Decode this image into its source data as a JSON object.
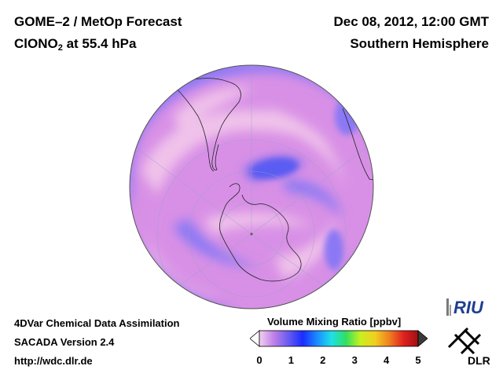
{
  "header": {
    "title": "GOME–2 / MetOp Forecast",
    "species_main": "ClONO",
    "species_sub": "2",
    "species_level": " at 55.4 hPa",
    "date": "Dec 08, 2012, 12:00 GMT",
    "region": "Southern Hemisphere"
  },
  "footer": {
    "line1": "4DVar Chemical Data Assimilation",
    "line2": "SACADA Version 2.4",
    "line3": "http://wdc.dlr.de"
  },
  "colorbar": {
    "title": "Volume Mixing Ratio [ppbv]",
    "min": 0,
    "max": 5,
    "ticks": [
      "0",
      "1",
      "2",
      "3",
      "4",
      "5"
    ],
    "under_color": "#ffffff",
    "over_color": "#3a3a3a",
    "colors": [
      "#f2d0f0",
      "#c080e8",
      "#6a5cf0",
      "#1a2cff",
      "#1a8cff",
      "#20e0e8",
      "#30e060",
      "#c8f020",
      "#f0d020",
      "#f08020",
      "#e02020",
      "#a01010"
    ]
  },
  "map": {
    "projection": "orthographic, south polar",
    "field_colors": {
      "low": "#f0c2ea",
      "mid": "#d890e6",
      "high": "#8a78f4",
      "peak": "#5a5cf2"
    }
  },
  "logos": {
    "riu": "RIU",
    "dlr": "DLR"
  }
}
